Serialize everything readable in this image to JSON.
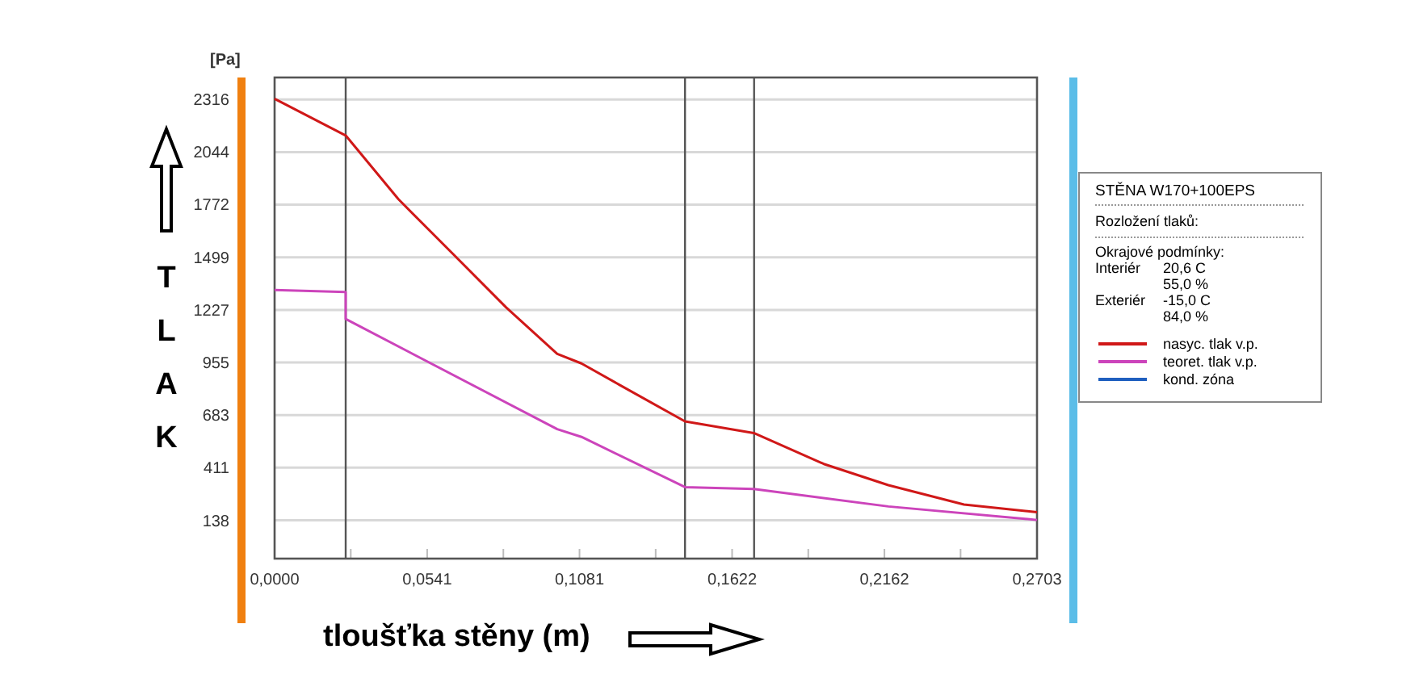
{
  "chart_data": {
    "type": "line",
    "ylabel": "TLAK",
    "xlabel": "tloušťka stěny (m)",
    "legend_title": "STĚNA W170+100EPS",
    "annotations": [
      "[Pa]",
      "Rozložení tlaků:",
      "Okrajové podmínky:",
      "Interiér",
      "20,6 C",
      "55,0 %",
      "Exteriér",
      "-15,0 C",
      "84,0 %"
    ],
    "xlim": [
      0,
      0.2703
    ],
    "ylim": [
      -60,
      2430
    ],
    "xticks": [
      {
        "value": 0,
        "label": "0,0000"
      },
      {
        "value": 0.027,
        "label": null
      },
      {
        "value": 0.0541,
        "label": "0,0541"
      },
      {
        "value": 0.0811,
        "label": null
      },
      {
        "value": 0.1081,
        "label": "0,1081"
      },
      {
        "value": 0.1351,
        "label": null
      },
      {
        "value": 0.1622,
        "label": "0,1622"
      },
      {
        "value": 0.1892,
        "label": null
      },
      {
        "value": 0.2162,
        "label": "0,2162"
      },
      {
        "value": 0.2432,
        "label": null
      },
      {
        "value": 0.2703,
        "label": "0,2703"
      }
    ],
    "yticks": [
      138,
      411,
      683,
      955,
      1227,
      1499,
      1772,
      2044,
      2316
    ],
    "grid": "y",
    "legend": "right",
    "line_style": "solid",
    "ref_lines": [
      {
        "axis": "x",
        "value": 0.0252,
        "color": "#555555"
      },
      {
        "axis": "x",
        "value": 0.1455,
        "color": "#555555"
      },
      {
        "axis": "x",
        "value": 0.17,
        "color": "#555555"
      }
    ],
    "series": [
      {
        "name": "nasyc. tlak v.p.",
        "color": "#d01818",
        "x": [
          0,
          0.0252,
          0.0439,
          0.063,
          0.0821,
          0.1002,
          0.1088,
          0.1222,
          0.1455,
          0.1699,
          0.1947,
          0.2176,
          0.2444,
          0.2703
        ],
        "values": [
          2320,
          2130,
          1800,
          1520,
          1240,
          1000,
          950,
          840,
          650,
          590,
          430,
          320,
          220,
          180
        ]
      },
      {
        "name": "teoret. tlak v.p.",
        "color": "#cc44bb",
        "x": [
          0,
          0.0252,
          0.0252,
          0.1002,
          0.1088,
          0.1455,
          0.1699,
          0.2176,
          0.2703
        ],
        "values": [
          1330,
          1320,
          1180,
          610,
          570,
          310,
          300,
          210,
          140
        ]
      },
      {
        "name": "kond. zóna",
        "color": "#1f5fbf"
      }
    ]
  }
}
